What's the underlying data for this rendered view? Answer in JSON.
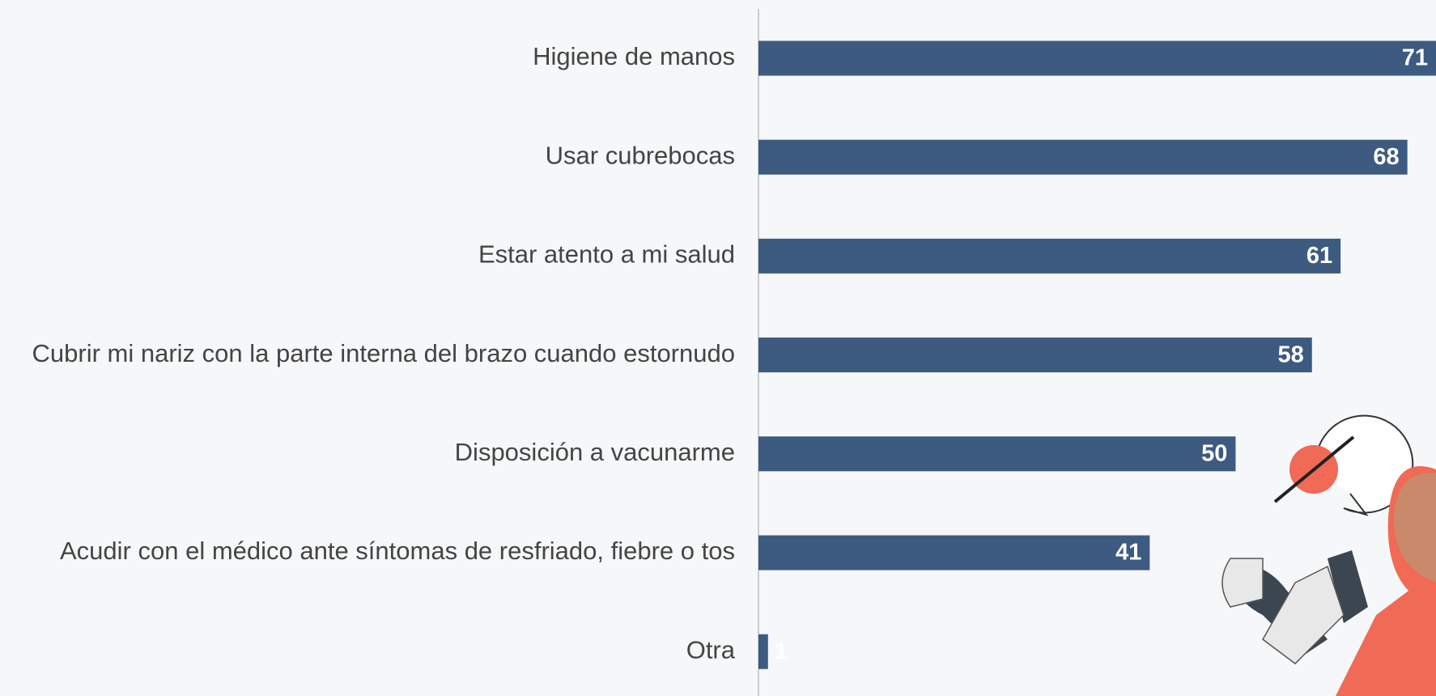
{
  "chart_data": {
    "type": "bar",
    "orientation": "horizontal",
    "categories": [
      "Higiene de manos",
      "Usar cubrebocas",
      "Estar atento a mi salud",
      "Cubrir mi nariz con la parte interna del brazo cuando estornudo",
      "Disposición a vacunarme",
      "Acudir con el médico ante síntomas de resfriado, fiebre o tos",
      "Otra"
    ],
    "values": [
      71,
      68,
      61,
      58,
      50,
      41,
      1
    ],
    "color": "#3d5a80",
    "xlim": [
      0,
      71
    ]
  }
}
